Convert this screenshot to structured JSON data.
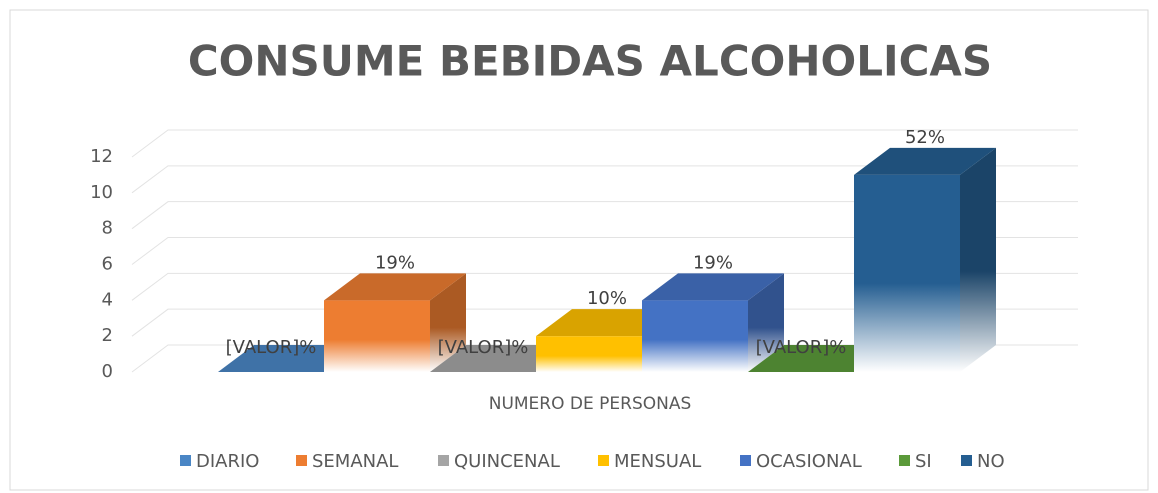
{
  "chart_data": {
    "type": "bar3d",
    "title": "CONSUME BEBIDAS ALCOHOLICAS",
    "categories": [
      "NUMERO DE PERSONAS"
    ],
    "series": [
      {
        "name": "DIARIO",
        "color": "#4a86c5",
        "values": [
          0
        ],
        "value_labels": [
          "[VALOR]%"
        ]
      },
      {
        "name": "SEMANAL",
        "color": "#ed7d31",
        "values": [
          4
        ],
        "value_labels": [
          "19%"
        ]
      },
      {
        "name": "QUINCENAL",
        "color": "#a5a5a5",
        "values": [
          0
        ],
        "value_labels": [
          "[VALOR]%"
        ]
      },
      {
        "name": "MENSUAL",
        "color": "#ffc000",
        "values": [
          2
        ],
        "value_labels": [
          "10%"
        ]
      },
      {
        "name": "OCASIONAL",
        "color": "#4472c4",
        "values": [
          4
        ],
        "value_labels": [
          "19%"
        ]
      },
      {
        "name": "SI",
        "color": "#5b9a3a",
        "values": [
          0
        ],
        "value_labels": [
          "[VALOR]%"
        ]
      },
      {
        "name": "NO",
        "color": "#255e91",
        "values": [
          11
        ],
        "value_labels": [
          "52%"
        ]
      }
    ],
    "ylim": [
      0,
      12
    ],
    "yticks": [
      0,
      2,
      4,
      6,
      8,
      10,
      12
    ],
    "grid": true,
    "legend": "bottom"
  }
}
